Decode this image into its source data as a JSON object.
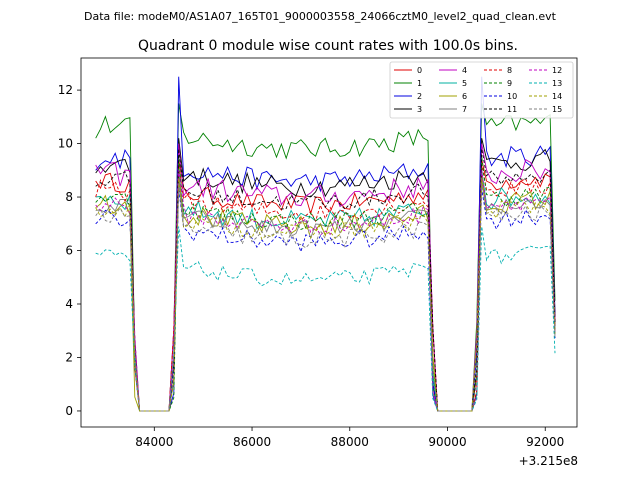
{
  "chart_data": {
    "type": "line",
    "suptitle": "Data file: modeM0/AS1A07_165T01_9000003558_24066cztM0_level2_quad_clean.evt",
    "title": "Quadrant 0 module wise count rates with 100.0s bins.",
    "xlabel": "",
    "ylabel": "",
    "offset_text": "+3.215e8",
    "xlim": [
      82500,
      92650
    ],
    "ylim": [
      -0.6,
      13.2
    ],
    "xticks": [
      84000,
      86000,
      88000,
      90000,
      92000
    ],
    "xtick_labels": [
      "84000",
      "86000",
      "88000",
      "90000",
      "92000"
    ],
    "yticks": [
      0,
      2,
      4,
      6,
      8,
      10,
      12
    ],
    "ytick_labels": [
      "0",
      "2",
      "4",
      "6",
      "8",
      "10",
      "12"
    ],
    "grid": false,
    "legend_position": "top-right",
    "x_start": 82800,
    "x_step": 100,
    "n_points": 95,
    "gap_ranges": [
      [
        83700,
        84300
      ],
      [
        89800,
        90500
      ]
    ],
    "series": [
      {
        "name": "0",
        "color": "#e00000",
        "dash": "solid",
        "level": 8.2,
        "noise": 0.35,
        "first": 8.6,
        "peak": 9.4
      },
      {
        "name": "1",
        "color": "#008000",
        "dash": "solid",
        "level": 10.3,
        "noise": 0.4,
        "first": 10.2,
        "peak": 11.5
      },
      {
        "name": "2",
        "color": "#0000e0",
        "dash": "solid",
        "level": 9.1,
        "noise": 0.4,
        "first": 9.0,
        "peak": 12.5
      },
      {
        "name": "3",
        "color": "#000000",
        "dash": "solid",
        "level": 8.9,
        "noise": 0.4,
        "first": 8.9,
        "peak": 10.2
      },
      {
        "name": "4",
        "color": "#c000c0",
        "dash": "solid",
        "level": 8.5,
        "noise": 0.45,
        "first": 9.2,
        "peak": 10.0
      },
      {
        "name": "5",
        "color": "#00b0a0",
        "dash": "solid",
        "level": 7.6,
        "noise": 0.4,
        "first": 8.0,
        "peak": 9.0
      },
      {
        "name": "6",
        "color": "#a0a000",
        "dash": "solid",
        "level": 7.4,
        "noise": 0.4,
        "first": 7.6,
        "peak": 8.8
      },
      {
        "name": "7",
        "color": "#808080",
        "dash": "solid",
        "level": 7.3,
        "noise": 0.35,
        "first": 7.5,
        "peak": 8.6
      },
      {
        "name": "8",
        "color": "#e00000",
        "dash": "dashed",
        "level": 7.9,
        "noise": 0.35,
        "first": 8.0,
        "peak": 9.2
      },
      {
        "name": "9",
        "color": "#008000",
        "dash": "dashed",
        "level": 7.6,
        "noise": 0.35,
        "first": 7.8,
        "peak": 9.5
      },
      {
        "name": "10",
        "color": "#0000e0",
        "dash": "dashed",
        "level": 6.8,
        "noise": 0.35,
        "first": 7.0,
        "peak": 8.3
      },
      {
        "name": "11",
        "color": "#000000",
        "dash": "dashed",
        "level": 8.3,
        "noise": 0.35,
        "first": 8.4,
        "peak": 9.8
      },
      {
        "name": "12",
        "color": "#c000c0",
        "dash": "dashed",
        "level": 7.4,
        "noise": 0.35,
        "first": 7.7,
        "peak": 9.0
      },
      {
        "name": "13",
        "color": "#00b0b0",
        "dash": "dashed",
        "level": 5.4,
        "noise": 0.3,
        "first": 5.9,
        "peak": 6.9
      },
      {
        "name": "14",
        "color": "#a0a000",
        "dash": "dashed",
        "level": 7.2,
        "noise": 0.35,
        "first": 7.6,
        "peak": 8.7
      },
      {
        "name": "15",
        "color": "#808080",
        "dash": "dashed",
        "level": 6.9,
        "noise": 0.35,
        "first": 7.3,
        "peak": 8.5
      }
    ]
  }
}
